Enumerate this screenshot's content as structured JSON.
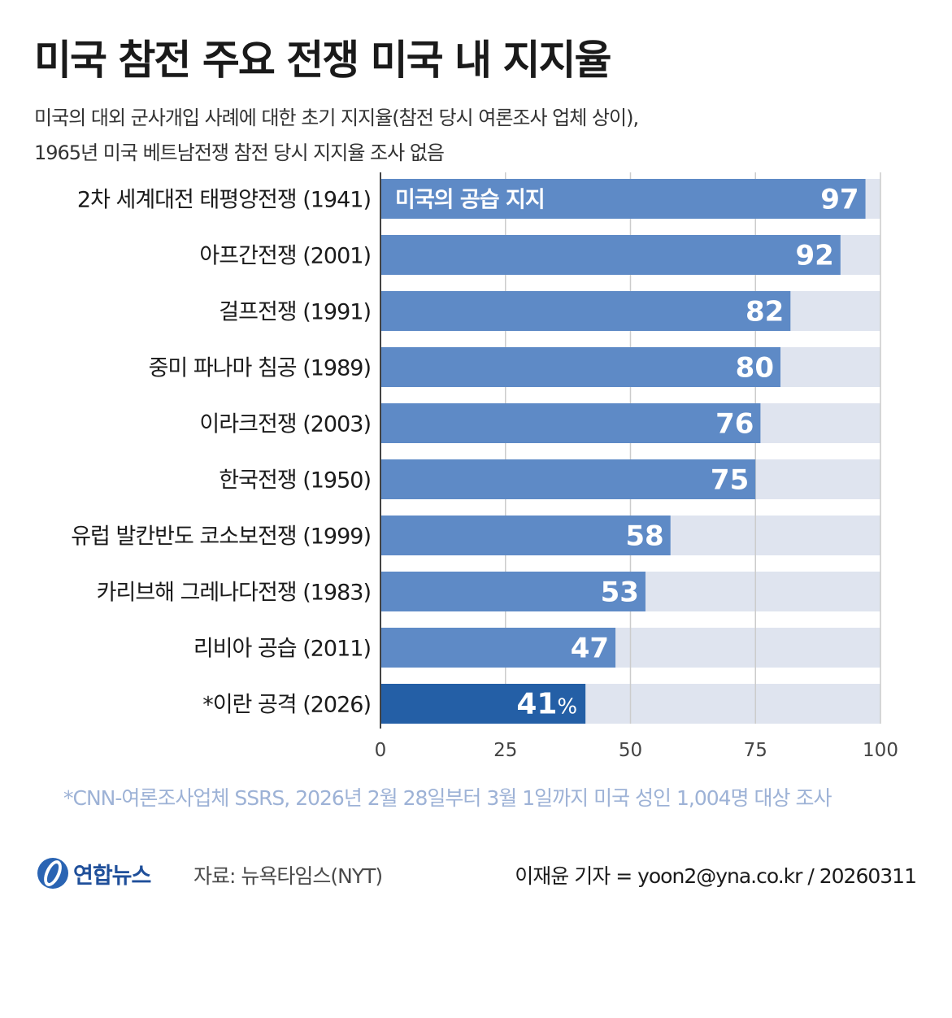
{
  "header": {
    "title": "미국 참전 주요 전쟁 미국 내 지지율",
    "subtitle_line1": "미국의 대외 군사개입 사례에 대한 초기 지지율(참전 당시 여론조사 업체 상이),",
    "subtitle_line2": "1965년 미국 베트남전쟁 참전 당시 지지율 조사 없음"
  },
  "chart_data": {
    "type": "bar",
    "orientation": "horizontal",
    "categories": [
      "2차 세계대전 태평양전쟁 (1941)",
      "아프간전쟁 (2001)",
      "걸프전쟁 (1991)",
      "중미 파나마 침공 (1989)",
      "이라크전쟁 (2003)",
      "한국전쟁 (1950)",
      "유럽 발칸반도 코소보전쟁 (1999)",
      "카리브해 그레나다전쟁 (1983)",
      "리비아 공습 (2011)",
      "*이란 공격 (2026)"
    ],
    "category_names": [
      "2차 세계대전 태평양전쟁",
      "아프간전쟁",
      "걸프전쟁",
      "중미 파나마 침공",
      "이라크전쟁",
      "한국전쟁",
      "유럽 발칸반도 코소보전쟁",
      "카리브해 그레나다전쟁",
      "리비아 공습",
      "*이란 공격"
    ],
    "category_years": [
      "(1941)",
      "(2001)",
      "(1991)",
      "(1989)",
      "(2003)",
      "(1950)",
      "(1999)",
      "(1983)",
      "(2011)",
      "(2026)"
    ],
    "values": [
      97,
      92,
      82,
      80,
      76,
      75,
      58,
      53,
      47,
      41
    ],
    "value_labels": [
      "97",
      "92",
      "82",
      "80",
      "76",
      "75",
      "58",
      "53",
      "47",
      "41"
    ],
    "highlight_index": 9,
    "highlight_suffix": "%",
    "xlim": [
      0,
      100
    ],
    "xticks": [
      0,
      25,
      50,
      75,
      100
    ],
    "grid": true,
    "series_label": "미국의 공습 지지",
    "colors": {
      "bar": "#5e8ac6",
      "highlight_bar": "#245fa6",
      "background_bar": "#dfe4ef",
      "gridline": "#cccccc",
      "axis": "#444444"
    }
  },
  "footer": {
    "note": "*CNN-여론조사업체 SSRS, 2026년 2월 28일부터 3월 1일까지 미국 성인 1,004명 대상 조사",
    "logo_text": "연합뉴스",
    "source": "자료: 뉴욕타임스(NYT)",
    "credit": "이재윤 기자 = yoon2@yna.co.kr / 20260311"
  }
}
